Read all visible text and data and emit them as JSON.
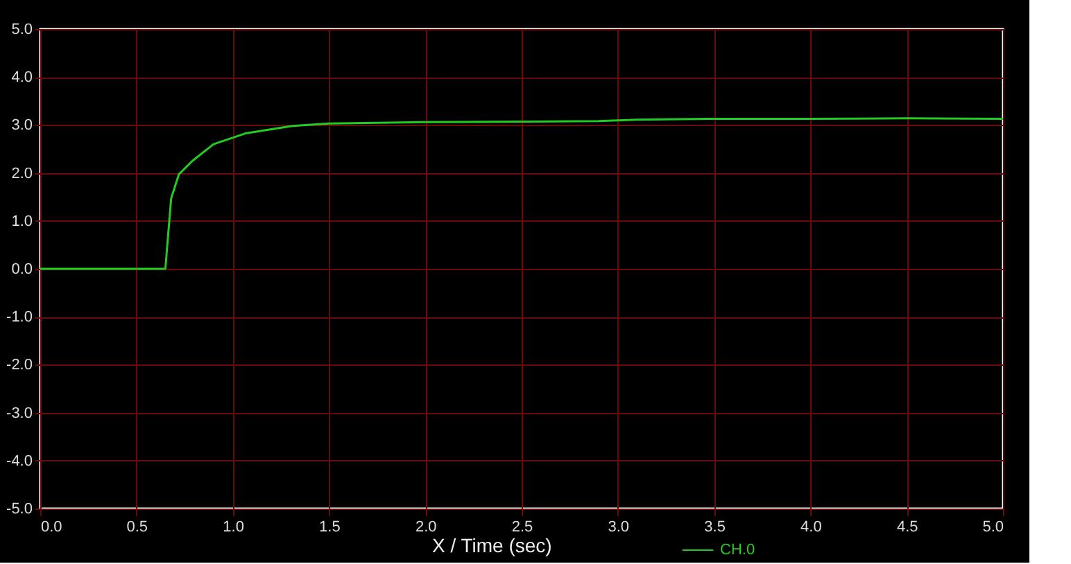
{
  "chart_data": {
    "type": "line",
    "xlabel": "X / Time (sec)",
    "xlim": [
      0,
      5
    ],
    "ylim": [
      -5,
      5
    ],
    "xticks": [
      {
        "value": 0,
        "label": "0.0"
      },
      {
        "value": 0.5,
        "label": "0.5"
      },
      {
        "value": 1,
        "label": "1.0"
      },
      {
        "value": 1.5,
        "label": "1.5"
      },
      {
        "value": 2,
        "label": "2.0"
      },
      {
        "value": 2.5,
        "label": "2.5"
      },
      {
        "value": 3,
        "label": "3.0"
      },
      {
        "value": 3.5,
        "label": "3.5"
      },
      {
        "value": 4,
        "label": "4.0"
      },
      {
        "value": 4.5,
        "label": "4.5"
      },
      {
        "value": 5,
        "label": "5.0"
      }
    ],
    "yticks": [
      {
        "value": -5,
        "label": "-5.0"
      },
      {
        "value": -4,
        "label": "-4.0"
      },
      {
        "value": -3,
        "label": "-3.0"
      },
      {
        "value": -2,
        "label": "-2.0"
      },
      {
        "value": -1,
        "label": "-1.0"
      },
      {
        "value": 0,
        "label": "0.0"
      },
      {
        "value": 1,
        "label": "1.0"
      },
      {
        "value": 2,
        "label": "2.0"
      },
      {
        "value": 3,
        "label": "3.0"
      },
      {
        "value": 4,
        "label": "4.0"
      },
      {
        "value": 5,
        "label": "5.0"
      }
    ],
    "grid": true,
    "legend": "bottom",
    "marker": "none",
    "line_style": "solid",
    "series": [
      {
        "name": "CH.0",
        "color": "#22cc22",
        "x": [
          0,
          0.3,
          0.65,
          0.66,
          0.68,
          0.72,
          0.79,
          0.9,
          1.07,
          1.31,
          1.5,
          2.0,
          2.5,
          2.9,
          3.1,
          3.5,
          4.0,
          4.5,
          5.0
        ],
        "values": [
          0,
          0,
          0,
          0.5,
          1.47,
          1.97,
          2.25,
          2.6,
          2.83,
          2.98,
          3.03,
          3.06,
          3.07,
          3.08,
          3.11,
          3.13,
          3.13,
          3.14,
          3.13
        ]
      }
    ]
  }
}
